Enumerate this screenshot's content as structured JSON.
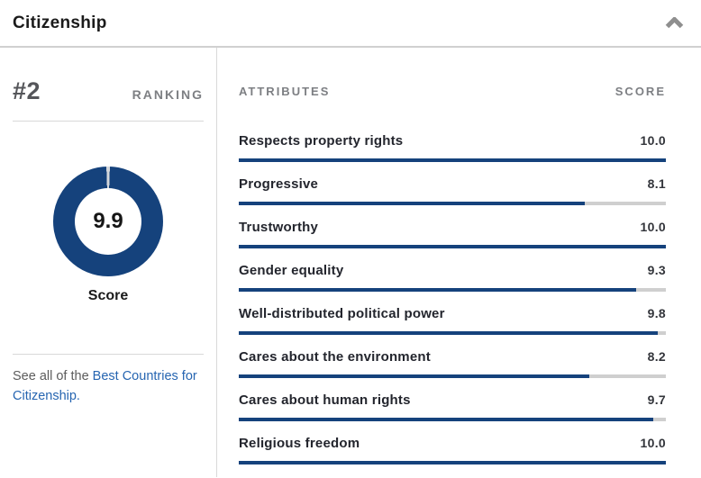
{
  "panel": {
    "title": "Citizenship"
  },
  "ranking": {
    "rank": "#2",
    "label": "RANKING"
  },
  "score_donut": {
    "value": "9.9",
    "label": "Score",
    "max": 10,
    "percent": 99,
    "accent_color": "#15427c",
    "track_color": "#d4d7db"
  },
  "see_all": {
    "prefix": "See all of the ",
    "link_text": "Best Countries for Citizenship."
  },
  "attributes_table": {
    "header": {
      "attributes": "ATTRIBUTES",
      "score": "SCORE"
    },
    "max_score": 10,
    "bar_color": "#15427c",
    "bar_track_color": "#cfcfcf",
    "rows": [
      {
        "label": "Respects property rights",
        "score": "10.0",
        "value": 10.0,
        "width_pct": 100
      },
      {
        "label": "Progressive",
        "score": "8.1",
        "value": 8.1,
        "width_pct": 81
      },
      {
        "label": "Trustworthy",
        "score": "10.0",
        "value": 10.0,
        "width_pct": 100
      },
      {
        "label": "Gender equality",
        "score": "9.3",
        "value": 9.3,
        "width_pct": 93
      },
      {
        "label": "Well-distributed political power",
        "score": "9.8",
        "value": 9.8,
        "width_pct": 98
      },
      {
        "label": "Cares about the environment",
        "score": "8.2",
        "value": 8.2,
        "width_pct": 82
      },
      {
        "label": "Cares about human rights",
        "score": "9.7",
        "value": 9.7,
        "width_pct": 97
      },
      {
        "label": "Religious freedom",
        "score": "10.0",
        "value": 10.0,
        "width_pct": 100
      }
    ]
  },
  "colors": {
    "brand_navy": "#15427c",
    "link_blue": "#2665b1",
    "muted_gray": "#7d7f83",
    "divider_gray": "#d8d8d8"
  },
  "chart_data": [
    {
      "type": "pie",
      "subtype": "donut-gauge",
      "title": "Score",
      "values": [
        9.9,
        0.1
      ],
      "labels": [
        "score",
        "remainder"
      ],
      "center_text": "9.9",
      "range": [
        0,
        10
      ]
    },
    {
      "type": "bar",
      "orientation": "horizontal",
      "categories": [
        "Respects property rights",
        "Progressive",
        "Trustworthy",
        "Gender equality",
        "Well-distributed political power",
        "Cares about the environment",
        "Cares about human rights",
        "Religious freedom"
      ],
      "values": [
        10.0,
        8.1,
        10.0,
        9.3,
        9.8,
        8.2,
        9.7,
        10.0
      ],
      "title": "Citizenship attributes",
      "xlabel": "SCORE",
      "ylabel": "ATTRIBUTES",
      "xlim": [
        0,
        10
      ]
    }
  ]
}
